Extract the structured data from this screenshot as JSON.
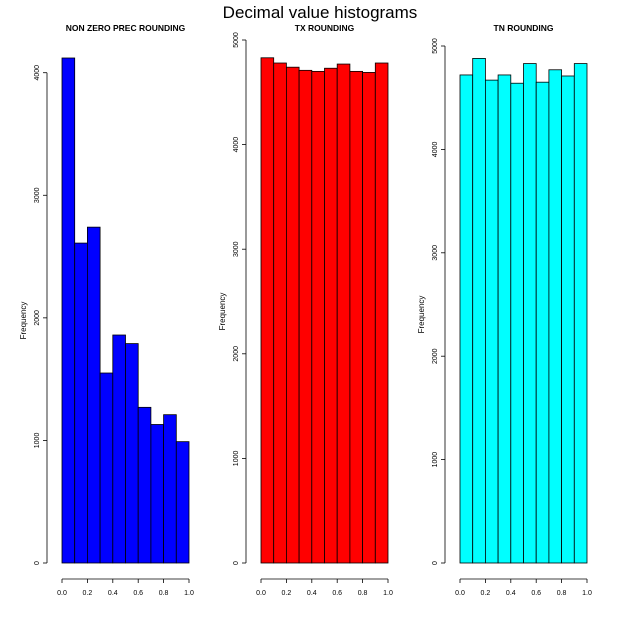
{
  "figure": {
    "title": "Decimal value histograms"
  },
  "chart_data": [
    {
      "type": "bar",
      "title": "NON ZERO PREC ROUNDING",
      "ylabel": "Frequency",
      "xlabel": "",
      "color": "#0000ff",
      "bin_edges": [
        0.0,
        0.1,
        0.2,
        0.3,
        0.4,
        0.5,
        0.6,
        0.7,
        0.8,
        0.9,
        1.0
      ],
      "values": [
        4120,
        2610,
        2740,
        1550,
        1860,
        1790,
        1270,
        1130,
        1210,
        990
      ],
      "xlim": [
        0,
        1
      ],
      "ylim": [
        0,
        4120
      ],
      "xticks": [
        0.0,
        0.2,
        0.4,
        0.6,
        0.8,
        1.0
      ],
      "xtick_labels": [
        "0.0",
        "0.2",
        "0.4",
        "0.6",
        "0.8",
        "1.0"
      ],
      "yticks": [
        0,
        1000,
        2000,
        3000,
        4000
      ],
      "ytick_labels": [
        "0",
        "1000",
        "2000",
        "3000",
        "4000"
      ]
    },
    {
      "type": "bar",
      "title": "TX ROUNDING",
      "ylabel": "Frequency",
      "xlabel": "",
      "color": "#ff0000",
      "bin_edges": [
        0.0,
        0.1,
        0.2,
        0.3,
        0.4,
        0.5,
        0.6,
        0.7,
        0.8,
        0.9,
        1.0
      ],
      "values": [
        4830,
        4780,
        4740,
        4710,
        4700,
        4730,
        4770,
        4700,
        4690,
        4780
      ],
      "xlim": [
        0,
        1
      ],
      "ylim": [
        0,
        5000
      ],
      "xticks": [
        0.0,
        0.2,
        0.4,
        0.6,
        0.8,
        1.0
      ],
      "xtick_labels": [
        "0.0",
        "0.2",
        "0.4",
        "0.6",
        "0.8",
        "1.0"
      ],
      "yticks": [
        0,
        1000,
        2000,
        3000,
        4000,
        5000
      ],
      "ytick_labels": [
        "0",
        "1000",
        "2000",
        "3000",
        "4000",
        "5000"
      ]
    },
    {
      "type": "bar",
      "title": "TN ROUNDING",
      "ylabel": "Frequency",
      "xlabel": "",
      "color": "#00ffff",
      "bin_edges": [
        0.0,
        0.1,
        0.2,
        0.3,
        0.4,
        0.5,
        0.6,
        0.7,
        0.8,
        0.9,
        1.0
      ],
      "values": [
        4720,
        4880,
        4670,
        4720,
        4640,
        4830,
        4650,
        4770,
        4710,
        4830
      ],
      "xlim": [
        0,
        1
      ],
      "ylim": [
        0,
        5000
      ],
      "xticks": [
        0.0,
        0.2,
        0.4,
        0.6,
        0.8,
        1.0
      ],
      "xtick_labels": [
        "0.0",
        "0.2",
        "0.4",
        "0.6",
        "0.8",
        "1.0"
      ],
      "yticks": [
        0,
        1000,
        2000,
        3000,
        4000,
        5000
      ],
      "ytick_labels": [
        "0",
        "1000",
        "2000",
        "3000",
        "4000",
        "5000"
      ]
    }
  ]
}
